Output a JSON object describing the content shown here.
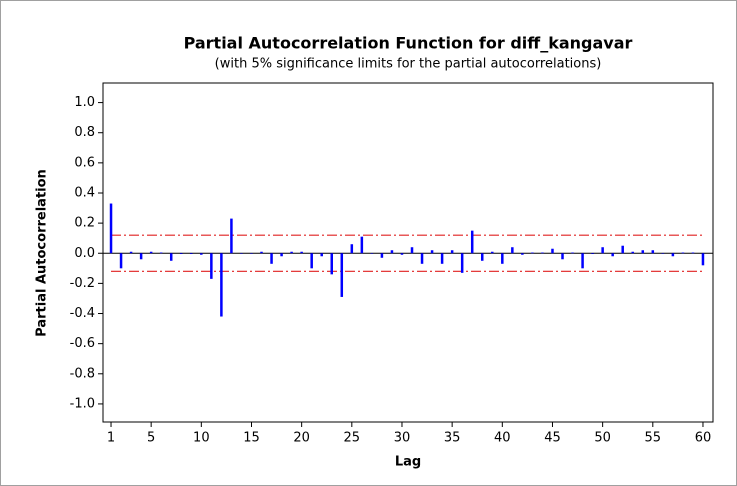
{
  "chart_data": {
    "type": "bar",
    "title": "Partial Autocorrelation Function for diff_kangavar",
    "subtitle": "(with 5% significance limits for the partial autocorrelations)",
    "x_label": "Lag",
    "y_label": "Partial Autocorrelation",
    "x": [
      1,
      2,
      3,
      4,
      5,
      6,
      7,
      8,
      9,
      10,
      11,
      12,
      13,
      14,
      15,
      16,
      17,
      18,
      19,
      20,
      21,
      22,
      23,
      24,
      25,
      26,
      27,
      28,
      29,
      30,
      31,
      32,
      33,
      34,
      35,
      36,
      37,
      38,
      39,
      40,
      41,
      42,
      43,
      44,
      45,
      46,
      47,
      48,
      49,
      50,
      51,
      52,
      53,
      54,
      55,
      56,
      57,
      58,
      59,
      60
    ],
    "values": [
      0.33,
      -0.1,
      0.01,
      -0.04,
      0.01,
      0.005,
      -0.05,
      -0.005,
      -0.005,
      -0.01,
      -0.17,
      -0.42,
      0.23,
      0.0,
      0.0,
      0.01,
      -0.07,
      -0.02,
      0.01,
      0.01,
      -0.1,
      -0.02,
      -0.14,
      -0.29,
      0.06,
      0.11,
      0.0,
      -0.03,
      0.02,
      -0.01,
      0.04,
      -0.07,
      0.02,
      -0.07,
      0.02,
      -0.13,
      0.15,
      -0.05,
      0.01,
      -0.07,
      0.04,
      -0.01,
      0.005,
      0.005,
      0.03,
      -0.04,
      0.005,
      -0.1,
      -0.005,
      0.04,
      -0.02,
      0.05,
      0.01,
      0.02,
      0.02,
      0.0,
      -0.02,
      0.005,
      0.005,
      -0.08
    ],
    "color": "#0000ff",
    "significance_limits": {
      "upper": 0.12,
      "lower": -0.12,
      "color": "#e02020"
    },
    "xlim": [
      0.2,
      61
    ],
    "ylim": [
      -1.12,
      1.13
    ],
    "xticks": [
      1,
      5,
      10,
      15,
      20,
      25,
      30,
      35,
      40,
      45,
      50,
      55,
      60
    ],
    "yticks": [
      {
        "value": -1,
        "label": "-1.0"
      },
      -0.8,
      -0.6,
      -0.4,
      -0.2,
      {
        "value": 0,
        "label": "0.0"
      },
      0.2,
      0.4,
      0.6,
      0.8,
      {
        "value": 1,
        "label": "1.0"
      }
    ]
  }
}
